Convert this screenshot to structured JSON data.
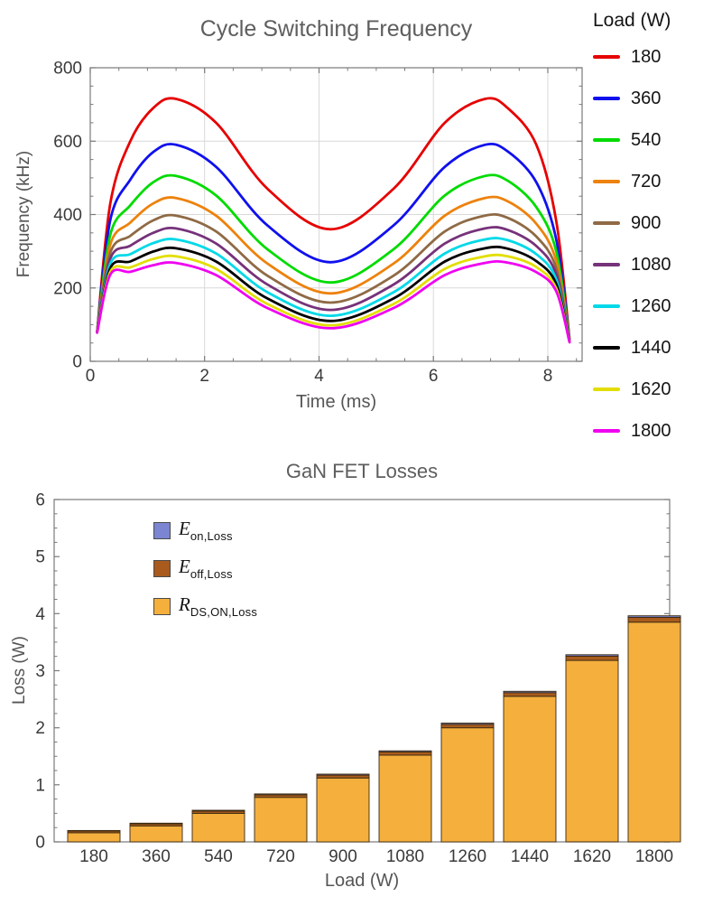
{
  "chart_data": [
    {
      "type": "line",
      "title": "Cycle Switching Frequency",
      "xlabel": "Time (ms)",
      "ylabel": "Frequency (kHz)",
      "legend_title": "Load (W)",
      "xlim": [
        0,
        8.6
      ],
      "ylim": [
        0,
        800
      ],
      "xticks": [
        0,
        2,
        4,
        6,
        8
      ],
      "yticks": [
        0,
        200,
        400,
        600,
        800
      ],
      "grid": true,
      "legend_position": "right",
      "x": [
        0.12,
        0.35,
        0.7,
        1.1,
        1.5,
        2.2,
        3.1,
        4.2,
        5.3,
        6.2,
        6.9,
        7.3,
        7.8,
        8.15,
        8.38
      ],
      "series": [
        {
          "name": "180",
          "color": "#E60000",
          "values": [
            80,
            430,
            600,
            690,
            715,
            650,
            470,
            360,
            470,
            650,
            715,
            690,
            590,
            380,
            60
          ]
        },
        {
          "name": "360",
          "color": "#1010EE",
          "values": [
            80,
            385,
            495,
            570,
            590,
            530,
            370,
            270,
            370,
            530,
            590,
            572,
            488,
            330,
            58
          ]
        },
        {
          "name": "540",
          "color": "#00DB00",
          "values": [
            80,
            345,
            425,
            488,
            505,
            452,
            305,
            215,
            305,
            452,
            505,
            492,
            420,
            298,
            57
          ]
        },
        {
          "name": "720",
          "color": "#ED820C",
          "values": [
            80,
            318,
            378,
            430,
            445,
            397,
            266,
            185,
            266,
            397,
            445,
            436,
            375,
            272,
            56
          ]
        },
        {
          "name": "900",
          "color": "#8F6A45",
          "values": [
            80,
            296,
            342,
            384,
            397,
            354,
            233,
            160,
            233,
            354,
            397,
            391,
            340,
            252,
            55
          ]
        },
        {
          "name": "1080",
          "color": "#76327A",
          "values": [
            80,
            280,
            315,
            350,
            362,
            321,
            209,
            140,
            209,
            321,
            362,
            358,
            314,
            236,
            55
          ]
        },
        {
          "name": "1260",
          "color": "#00D9E8",
          "values": [
            80,
            266,
            292,
            322,
            332,
            294,
            188,
            124,
            188,
            294,
            332,
            330,
            292,
            222,
            54
          ]
        },
        {
          "name": "1440",
          "color": "#000000",
          "values": [
            80,
            254,
            272,
            299,
            308,
            272,
            171,
            110,
            171,
            272,
            308,
            307,
            273,
            210,
            54
          ]
        },
        {
          "name": "1620",
          "color": "#E3DE00",
          "values": [
            79,
            244,
            256,
            279,
            286,
            252,
            156,
            98,
            156,
            252,
            286,
            286,
            257,
            198,
            53
          ]
        },
        {
          "name": "1800",
          "color": "#F000F0",
          "values": [
            78,
            236,
            244,
            262,
            268,
            235,
            145,
            90,
            145,
            235,
            268,
            269,
            243,
            190,
            52
          ]
        }
      ]
    },
    {
      "type": "stacked-bar",
      "title": "GaN FET Losses",
      "xlabel": "Load (W)",
      "ylabel": "Loss (W)",
      "ylim": [
        0,
        6
      ],
      "yticks": [
        0,
        1,
        2,
        3,
        4,
        5,
        6
      ],
      "grid": false,
      "legend_position": "top-left-inside",
      "categories": [
        "180",
        "360",
        "540",
        "720",
        "900",
        "1080",
        "1260",
        "1440",
        "1620",
        "1800"
      ],
      "bar_edge_color": "#3A2A12",
      "series": [
        {
          "name": "E_on,Loss",
          "symbol": "E",
          "subscript": "on,Loss",
          "color": "#7C85D1",
          "values": [
            0.01,
            0.012,
            0.014,
            0.016,
            0.018,
            0.02,
            0.022,
            0.024,
            0.026,
            0.028
          ]
        },
        {
          "name": "E_off,Loss",
          "symbol": "E",
          "subscript": "off,Loss",
          "color": "#A85B1C",
          "values": [
            0.03,
            0.035,
            0.04,
            0.045,
            0.05,
            0.055,
            0.06,
            0.065,
            0.075,
            0.085
          ]
        },
        {
          "name": "R_DS,ON,Loss",
          "symbol": "R",
          "subscript": "DS,ON,Loss",
          "color": "#F5AF3D",
          "values": [
            0.16,
            0.28,
            0.5,
            0.78,
            1.12,
            1.52,
            2.0,
            2.55,
            3.18,
            3.85
          ]
        }
      ]
    }
  ]
}
